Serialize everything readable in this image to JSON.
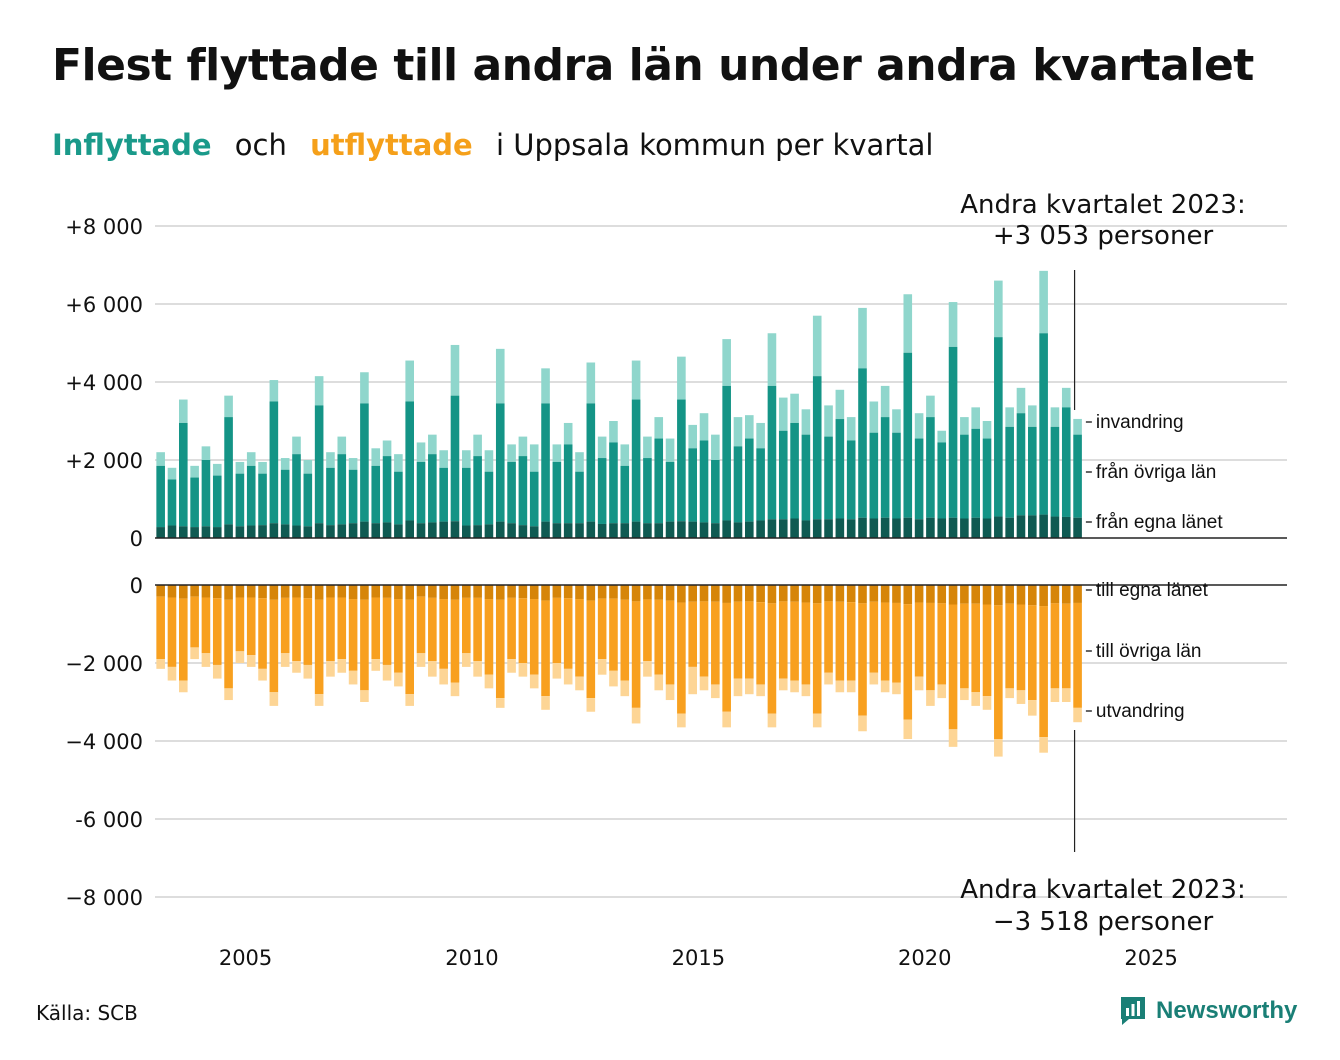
{
  "title": "Flest flyttade till andra län under andra kvartalet",
  "subtitle": {
    "part_in": "Inflyttade",
    "part_and": "och",
    "part_out": "utflyttade",
    "part_rest": "i Uppsala kommun per kvartal"
  },
  "source": "Källa: SCB",
  "brand": "Newsworthy",
  "colors": {
    "in_egna": "#0f5a52",
    "in_ovriga": "#149486",
    "in_invandring": "#8fd6cc",
    "out_egna": "#d68509",
    "out_ovriga": "#f8a01f",
    "out_utvandring": "#fdd595",
    "grid": "#dddddd",
    "axis": "#222222"
  },
  "annotations": {
    "top_line1": "Andra kvartalet 2023:",
    "top_line2": "+3 053 personer",
    "bottom_line1": "Andra kvartalet 2023:",
    "bottom_line2": "−3 518 personer"
  },
  "chart_data": {
    "type": "bar",
    "stacked": true,
    "start_year": 2003,
    "start_quarter": 1,
    "xlim": [
      2003.0,
      2028.0
    ],
    "x_ticks": [
      "2005",
      "2010",
      "2015",
      "2020",
      "2025"
    ],
    "top_panel": {
      "ylim": [
        0,
        8000
      ],
      "y_ticks": [
        "0",
        "+2 000",
        "+4 000",
        "+6 000",
        "+8 000"
      ],
      "series_labels": [
        "invandring",
        "från övriga län",
        "från egna länet"
      ],
      "totals": [
        2200,
        1800,
        3550,
        1850,
        2350,
        1900,
        3650,
        1950,
        2200,
        1950,
        4050,
        2050,
        2600,
        2000,
        4150,
        2200,
        2600,
        2050,
        4250,
        2300,
        2500,
        2150,
        4550,
        2450,
        2650,
        2250,
        4950,
        2250,
        2650,
        2250,
        4850,
        2400,
        2600,
        2400,
        4350,
        2400,
        2950,
        2200,
        4500,
        2600,
        3000,
        2400,
        4550,
        2600,
        3100,
        2550,
        4650,
        2900,
        3200,
        2650,
        5100,
        3100,
        3150,
        2950,
        5250,
        3600,
        3700,
        3300,
        5700,
        3400,
        3800,
        3100,
        5900,
        3500,
        3900,
        3300,
        6250,
        3200,
        3650,
        2750,
        6050,
        3100,
        3350,
        3000,
        6600,
        3350,
        3850,
        3400,
        6850,
        3350,
        3850,
        3053
      ],
      "ovriga_top": [
        1850,
        1500,
        2950,
        1550,
        2000,
        1600,
        3100,
        1650,
        1850,
        1650,
        3500,
        1750,
        2150,
        1650,
        3400,
        1800,
        2150,
        1750,
        3450,
        1850,
        2100,
        1700,
        3500,
        1950,
        2150,
        1800,
        3650,
        1800,
        2100,
        1700,
        3450,
        1950,
        2100,
        1700,
        3450,
        1950,
        2400,
        1700,
        3450,
        2050,
        2450,
        1850,
        3550,
        2050,
        2550,
        1950,
        3550,
        2300,
        2500,
        2000,
        3900,
        2350,
        2550,
        2300,
        3900,
        2750,
        2950,
        2650,
        4150,
        2600,
        3050,
        2500,
        4350,
        2700,
        3100,
        2700,
        4750,
        2550,
        3100,
        2450,
        4900,
        2650,
        2800,
        2550,
        5150,
        2850,
        3200,
        2850,
        5250,
        2850,
        3350,
        2650
      ],
      "egna": [
        280,
        320,
        300,
        280,
        300,
        280,
        350,
        300,
        320,
        330,
        380,
        350,
        320,
        300,
        380,
        330,
        350,
        380,
        420,
        380,
        400,
        350,
        450,
        380,
        400,
        420,
        430,
        320,
        330,
        350,
        420,
        380,
        330,
        300,
        420,
        380,
        380,
        380,
        420,
        360,
        380,
        380,
        420,
        380,
        380,
        420,
        430,
        420,
        400,
        380,
        450,
        400,
        420,
        450,
        480,
        480,
        500,
        450,
        480,
        480,
        500,
        480,
        520,
        500,
        520,
        500,
        520,
        480,
        520,
        500,
        520,
        500,
        520,
        500,
        550,
        520,
        580,
        580,
        600,
        550,
        540,
        520
      ]
    },
    "bottom_panel": {
      "ylim": [
        -8000,
        0
      ],
      "y_ticks": [
        "0",
        "−2 000",
        "−4 000",
        "-6 000",
        "−8 000"
      ],
      "series_labels": [
        "till egna länet",
        "till övriga län",
        "utvandring"
      ],
      "totals": [
        -2150,
        -2450,
        -2750,
        -1900,
        -2100,
        -2400,
        -2950,
        -2000,
        -2100,
        -2450,
        -3100,
        -2100,
        -2250,
        -2400,
        -3100,
        -2350,
        -2250,
        -2550,
        -3000,
        -2200,
        -2450,
        -2600,
        -3100,
        -2100,
        -2350,
        -2550,
        -2850,
        -2100,
        -2350,
        -2650,
        -3150,
        -2250,
        -2350,
        -2650,
        -3200,
        -2400,
        -2550,
        -2700,
        -3250,
        -2300,
        -2600,
        -2850,
        -3550,
        -2350,
        -2700,
        -2950,
        -3650,
        -2800,
        -2700,
        -2900,
        -3650,
        -2850,
        -2800,
        -2850,
        -3650,
        -2700,
        -2750,
        -2850,
        -3650,
        -2550,
        -2750,
        -2750,
        -3750,
        -2550,
        -2750,
        -2800,
        -3950,
        -2700,
        -3100,
        -2900,
        -4150,
        -2950,
        -3100,
        -3200,
        -4400,
        -2900,
        -3050,
        -3350,
        -4300,
        -3000,
        -3000,
        -3518
      ],
      "egna": [
        -300,
        -320,
        -350,
        -300,
        -320,
        -340,
        -380,
        -320,
        -320,
        -340,
        -380,
        -330,
        -320,
        -340,
        -380,
        -320,
        -320,
        -360,
        -380,
        -320,
        -330,
        -360,
        -380,
        -300,
        -330,
        -360,
        -380,
        -330,
        -330,
        -360,
        -380,
        -330,
        -340,
        -360,
        -400,
        -330,
        -340,
        -360,
        -400,
        -350,
        -350,
        -380,
        -420,
        -370,
        -380,
        -400,
        -450,
        -430,
        -420,
        -430,
        -460,
        -430,
        -420,
        -440,
        -470,
        -420,
        -430,
        -450,
        -470,
        -420,
        -430,
        -440,
        -470,
        -430,
        -450,
        -460,
        -490,
        -450,
        -460,
        -470,
        -500,
        -480,
        -480,
        -500,
        -520,
        -480,
        -500,
        -520,
        -540,
        -470,
        -480,
        -460
      ],
      "ovriga_bottom": [
        -1900,
        -2100,
        -2450,
        -1600,
        -1750,
        -2050,
        -2650,
        -1700,
        -1800,
        -2150,
        -2750,
        -1750,
        -1950,
        -2050,
        -2800,
        -1950,
        -1900,
        -2200,
        -2700,
        -1900,
        -2050,
        -2250,
        -2800,
        -1750,
        -1950,
        -2150,
        -2500,
        -1750,
        -1950,
        -2300,
        -2900,
        -1900,
        -2000,
        -2300,
        -2850,
        -2000,
        -2150,
        -2350,
        -2900,
        -1900,
        -2200,
        -2450,
        -3150,
        -1950,
        -2300,
        -2550,
        -3300,
        -2100,
        -2350,
        -2550,
        -3250,
        -2400,
        -2400,
        -2550,
        -3300,
        -2400,
        -2450,
        -2550,
        -3300,
        -2250,
        -2450,
        -2450,
        -3350,
        -2250,
        -2450,
        -2500,
        -3450,
        -2350,
        -2700,
        -2550,
        -3700,
        -2650,
        -2750,
        -2850,
        -3950,
        -2650,
        -2700,
        -2950,
        -3900,
        -2650,
        -2650,
        -3150
      ]
    }
  }
}
